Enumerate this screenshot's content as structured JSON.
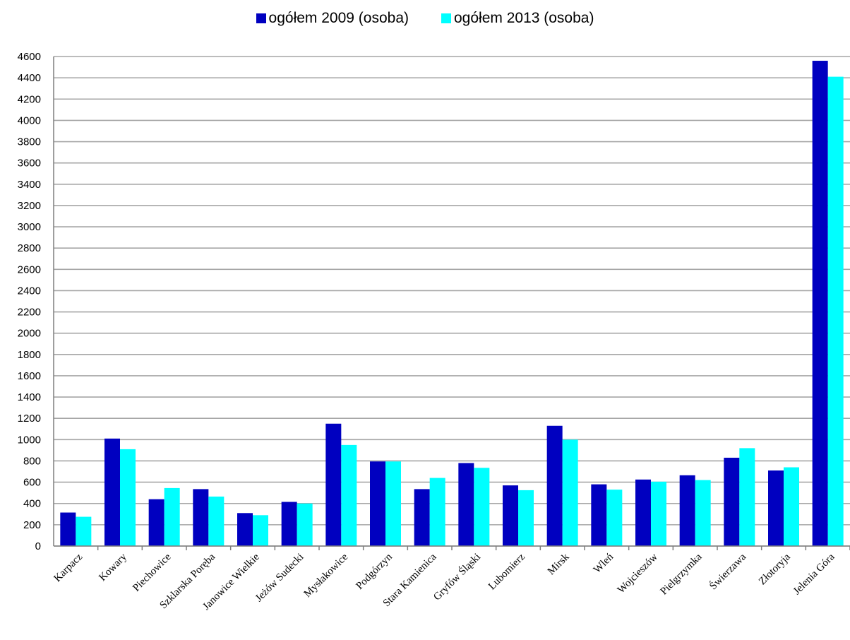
{
  "chart_data": {
    "type": "bar",
    "title": "",
    "xlabel": "",
    "ylabel": "",
    "ylim": [
      0,
      4600
    ],
    "ytick_step": 200,
    "grid": true,
    "legend_position": "top-center",
    "categories": [
      "Karpacz",
      "Kowary",
      "Piechowice",
      "Szklarska Poręba",
      "Janowice Wielkie",
      "Jeżów Sudecki",
      "Mysłakowice",
      "Podgórzyn",
      "Stara Kamienica",
      "Gryfów Śląski",
      "Lubomierz",
      "Mirsk",
      "Wleń",
      "Wojcieszów",
      "Pielgrzymka",
      "Świerzawa",
      "Złotoryja",
      "Jelenia Góra"
    ],
    "series": [
      {
        "name": "ogółem 2009 (osoba)",
        "color": "#0000c0",
        "values": [
          315,
          1010,
          440,
          535,
          310,
          415,
          1150,
          795,
          535,
          780,
          570,
          1130,
          580,
          625,
          665,
          830,
          710,
          4560
        ]
      },
      {
        "name": "ogółem 2013 (osoba)",
        "color": "#00ffff",
        "values": [
          275,
          910,
          545,
          465,
          290,
          400,
          950,
          795,
          640,
          735,
          525,
          1000,
          530,
          605,
          620,
          920,
          740,
          4410
        ]
      }
    ]
  }
}
